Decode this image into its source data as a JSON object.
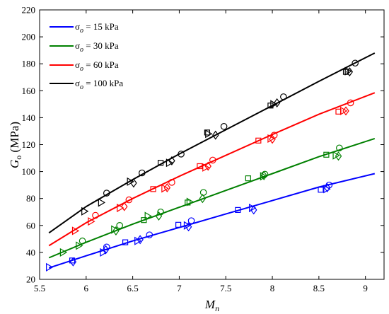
{
  "chart_data": {
    "type": "scatter",
    "title": "",
    "xlabel": "M",
    "xlabel_sub": "n",
    "ylabel": "G",
    "ylabel_sub": "o",
    "ylabel_unit": " (MPa)",
    "xlim": [
      5.5,
      9.2
    ],
    "ylim": [
      20,
      220
    ],
    "xticks": [
      5.5,
      6,
      6.5,
      7,
      7.5,
      8,
      8.5,
      9
    ],
    "xtick_labels": [
      "5.5",
      "6",
      "6.5",
      "7",
      "7.5",
      "8",
      "8.5",
      "9"
    ],
    "yticks": [
      20,
      40,
      60,
      80,
      100,
      120,
      140,
      160,
      180,
      200,
      220
    ],
    "ytick_labels": [
      "20",
      "40",
      "60",
      "80",
      "100",
      "120",
      "140",
      "160",
      "180",
      "200",
      "220"
    ],
    "grid": false,
    "legend_position": "top-left",
    "series": [
      {
        "name": "15 kPa",
        "legend_prefix": "σ",
        "legend_sub": "o",
        "legend_rest": " = 15 kPa",
        "color": "#0000ff",
        "line": [
          [
            5.6,
            28.5
          ],
          [
            6.0,
            37.5
          ],
          [
            6.5,
            48.5
          ],
          [
            7.0,
            58.5
          ],
          [
            7.5,
            68.5
          ],
          [
            8.0,
            78.5
          ],
          [
            8.5,
            88.5
          ],
          [
            9.1,
            98.5
          ]
        ],
        "points": [
          {
            "x": 5.6,
            "y": 29,
            "marker": "triangle-right"
          },
          {
            "x": 5.85,
            "y": 34,
            "marker": "square"
          },
          {
            "x": 5.86,
            "y": 33,
            "marker": "diamond"
          },
          {
            "x": 6.18,
            "y": 40,
            "marker": "triangle-right"
          },
          {
            "x": 6.21,
            "y": 42,
            "marker": "diamond"
          },
          {
            "x": 6.22,
            "y": 44,
            "marker": "circle"
          },
          {
            "x": 6.42,
            "y": 47.5,
            "marker": "square"
          },
          {
            "x": 6.55,
            "y": 48.5,
            "marker": "triangle-right"
          },
          {
            "x": 6.58,
            "y": 49.5,
            "marker": "diamond"
          },
          {
            "x": 6.68,
            "y": 53,
            "marker": "circle"
          },
          {
            "x": 6.99,
            "y": 60.5,
            "marker": "square"
          },
          {
            "x": 7.08,
            "y": 60,
            "marker": "triangle-right"
          },
          {
            "x": 7.1,
            "y": 59,
            "marker": "diamond"
          },
          {
            "x": 7.13,
            "y": 63.5,
            "marker": "circle"
          },
          {
            "x": 7.63,
            "y": 71.5,
            "marker": "square"
          },
          {
            "x": 7.78,
            "y": 73,
            "marker": "triangle-right"
          },
          {
            "x": 7.8,
            "y": 71.5,
            "marker": "diamond"
          },
          {
            "x": 8.52,
            "y": 86.5,
            "marker": "square"
          },
          {
            "x": 8.58,
            "y": 87,
            "marker": "triangle-right"
          },
          {
            "x": 8.59,
            "y": 88,
            "marker": "diamond"
          },
          {
            "x": 8.61,
            "y": 90,
            "marker": "circle"
          }
        ]
      },
      {
        "name": "30 kPa",
        "legend_prefix": "σ",
        "legend_sub": "o",
        "legend_rest": " = 30 kPa",
        "color": "#008000",
        "line": [
          [
            5.6,
            36
          ],
          [
            6.0,
            47.5
          ],
          [
            6.5,
            61
          ],
          [
            7.0,
            73.5
          ],
          [
            7.5,
            86
          ],
          [
            8.0,
            98.5
          ],
          [
            8.5,
            111
          ],
          [
            9.1,
            124.5
          ]
        ],
        "points": [
          {
            "x": 5.75,
            "y": 40,
            "marker": "triangle-right"
          },
          {
            "x": 5.92,
            "y": 45,
            "marker": "triangle-right"
          },
          {
            "x": 5.96,
            "y": 48.5,
            "marker": "circle"
          },
          {
            "x": 6.3,
            "y": 57,
            "marker": "triangle-right"
          },
          {
            "x": 6.32,
            "y": 56,
            "marker": "diamond"
          },
          {
            "x": 6.36,
            "y": 60,
            "marker": "circle"
          },
          {
            "x": 6.62,
            "y": 64,
            "marker": "square"
          },
          {
            "x": 6.66,
            "y": 67,
            "marker": "triangle-right"
          },
          {
            "x": 6.78,
            "y": 67,
            "marker": "diamond"
          },
          {
            "x": 6.8,
            "y": 70,
            "marker": "circle"
          },
          {
            "x": 7.09,
            "y": 77,
            "marker": "square"
          },
          {
            "x": 7.11,
            "y": 77.5,
            "marker": "triangle-right"
          },
          {
            "x": 7.25,
            "y": 80,
            "marker": "diamond"
          },
          {
            "x": 7.26,
            "y": 84.5,
            "marker": "circle"
          },
          {
            "x": 7.74,
            "y": 95,
            "marker": "square"
          },
          {
            "x": 7.9,
            "y": 96.5,
            "marker": "triangle-right"
          },
          {
            "x": 7.91,
            "y": 97,
            "marker": "diamond"
          },
          {
            "x": 7.92,
            "y": 98,
            "marker": "circle"
          },
          {
            "x": 8.58,
            "y": 112.5,
            "marker": "square"
          },
          {
            "x": 8.68,
            "y": 112,
            "marker": "triangle-right"
          },
          {
            "x": 8.71,
            "y": 111.5,
            "marker": "diamond"
          },
          {
            "x": 8.72,
            "y": 117.5,
            "marker": "circle"
          }
        ]
      },
      {
        "name": "60 kPa",
        "legend_prefix": "σ",
        "legend_sub": "o",
        "legend_rest": " = 60 kPa",
        "color": "#ff0000",
        "line": [
          [
            5.6,
            45
          ],
          [
            6.0,
            62
          ],
          [
            6.5,
            80
          ],
          [
            7.0,
            96.5
          ],
          [
            7.5,
            112
          ],
          [
            8.0,
            127.5
          ],
          [
            8.5,
            142.5
          ],
          [
            9.1,
            158.5
          ]
        ],
        "points": [
          {
            "x": 5.88,
            "y": 56,
            "marker": "triangle-right"
          },
          {
            "x": 6.05,
            "y": 63,
            "marker": "triangle-right"
          },
          {
            "x": 6.1,
            "y": 67.5,
            "marker": "circle"
          },
          {
            "x": 6.36,
            "y": 73,
            "marker": "triangle-right"
          },
          {
            "x": 6.41,
            "y": 74,
            "marker": "diamond"
          },
          {
            "x": 6.46,
            "y": 79,
            "marker": "circle"
          },
          {
            "x": 6.72,
            "y": 87,
            "marker": "square"
          },
          {
            "x": 6.84,
            "y": 87.5,
            "marker": "triangle-right"
          },
          {
            "x": 6.87,
            "y": 88,
            "marker": "diamond"
          },
          {
            "x": 6.92,
            "y": 92,
            "marker": "circle"
          },
          {
            "x": 7.22,
            "y": 104,
            "marker": "square"
          },
          {
            "x": 7.28,
            "y": 103,
            "marker": "triangle-right"
          },
          {
            "x": 7.31,
            "y": 104,
            "marker": "diamond"
          },
          {
            "x": 7.36,
            "y": 108.5,
            "marker": "circle"
          },
          {
            "x": 7.85,
            "y": 123,
            "marker": "square"
          },
          {
            "x": 7.98,
            "y": 124.5,
            "marker": "triangle-right"
          },
          {
            "x": 8.0,
            "y": 124,
            "marker": "diamond"
          },
          {
            "x": 8.02,
            "y": 127,
            "marker": "circle"
          },
          {
            "x": 8.71,
            "y": 144.5,
            "marker": "square"
          },
          {
            "x": 8.76,
            "y": 145,
            "marker": "triangle-right"
          },
          {
            "x": 8.79,
            "y": 145,
            "marker": "diamond"
          },
          {
            "x": 8.84,
            "y": 151,
            "marker": "circle"
          }
        ]
      },
      {
        "name": "100 kPa",
        "legend_prefix": "σ",
        "legend_sub": "o",
        "legend_rest": " = 100 kPa",
        "color": "#000000",
        "line": [
          [
            5.6,
            54.5
          ],
          [
            6.0,
            74
          ],
          [
            6.5,
            94
          ],
          [
            7.0,
            113
          ],
          [
            7.5,
            131
          ],
          [
            8.0,
            149
          ],
          [
            8.5,
            167
          ],
          [
            9.1,
            188
          ]
        ],
        "points": [
          {
            "x": 5.98,
            "y": 70.5,
            "marker": "triangle-right"
          },
          {
            "x": 6.16,
            "y": 77,
            "marker": "triangle-right"
          },
          {
            "x": 6.22,
            "y": 84,
            "marker": "circle"
          },
          {
            "x": 6.47,
            "y": 92.5,
            "marker": "triangle-right"
          },
          {
            "x": 6.51,
            "y": 91.5,
            "marker": "diamond"
          },
          {
            "x": 6.6,
            "y": 99,
            "marker": "circle"
          },
          {
            "x": 6.8,
            "y": 106.5,
            "marker": "square"
          },
          {
            "x": 6.89,
            "y": 106.5,
            "marker": "triangle-right"
          },
          {
            "x": 6.92,
            "y": 108,
            "marker": "diamond"
          },
          {
            "x": 7.02,
            "y": 113,
            "marker": "circle"
          },
          {
            "x": 7.3,
            "y": 129,
            "marker": "square"
          },
          {
            "x": 7.31,
            "y": 128,
            "marker": "triangle-right"
          },
          {
            "x": 7.39,
            "y": 127,
            "marker": "diamond"
          },
          {
            "x": 7.48,
            "y": 133.5,
            "marker": "circle"
          },
          {
            "x": 7.98,
            "y": 149,
            "marker": "square"
          },
          {
            "x": 8.01,
            "y": 150,
            "marker": "triangle-right"
          },
          {
            "x": 8.05,
            "y": 151,
            "marker": "diamond"
          },
          {
            "x": 8.12,
            "y": 155.5,
            "marker": "circle"
          },
          {
            "x": 8.79,
            "y": 174,
            "marker": "square"
          },
          {
            "x": 8.81,
            "y": 174.5,
            "marker": "triangle-right"
          },
          {
            "x": 8.83,
            "y": 174,
            "marker": "diamond"
          },
          {
            "x": 8.89,
            "y": 180.5,
            "marker": "circle"
          }
        ]
      }
    ]
  }
}
